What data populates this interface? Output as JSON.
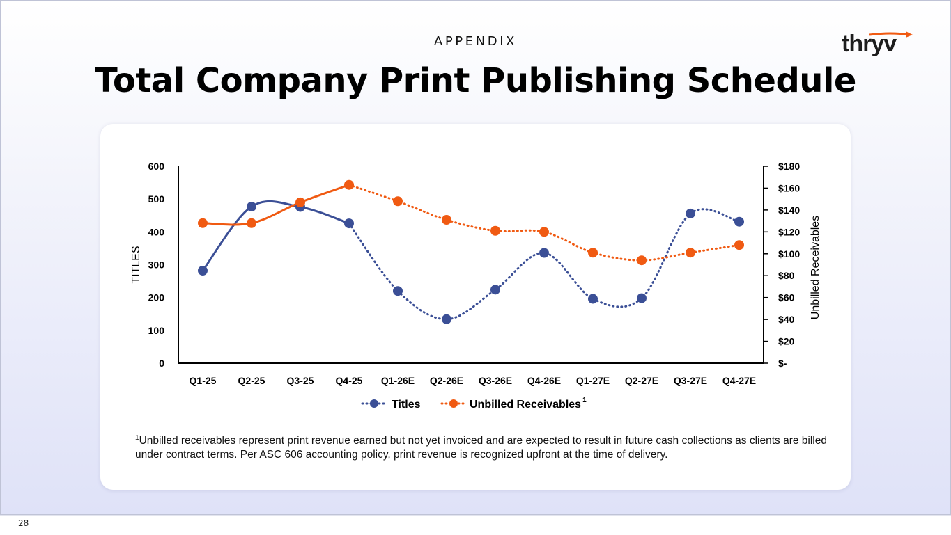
{
  "page": {
    "kicker": "APPENDIX",
    "title": "Total Company Print Publishing Schedule",
    "page_number": "28",
    "logo_text": "thryv"
  },
  "footnote": {
    "marker": "1",
    "text": "Unbilled receivables represent print revenue earned but not yet invoiced and are expected to result in future cash collections as clients are billed under contract terms. Per ASC 606 accounting policy, print revenue is recognized upfront at the time of delivery."
  },
  "colors": {
    "titles": "#3b4f96",
    "receivables": "#f05a12",
    "brand_accent": "#f05a12"
  },
  "chart_data": {
    "type": "line",
    "categories": [
      "Q1-25",
      "Q2-25",
      "Q3-25",
      "Q4-25",
      "Q1-26E",
      "Q2-26E",
      "Q3-26E",
      "Q4-26E",
      "Q1-27E",
      "Q2-27E",
      "Q3-27E",
      "Q4-27E"
    ],
    "ylabel_left": "TITLES",
    "ylabel_right": "Unbilled Receivables",
    "ylim_left": [
      0,
      600
    ],
    "ylim_right": [
      0,
      180
    ],
    "yticks_left": [
      "0",
      "100",
      "200",
      "300",
      "400",
      "500",
      "600"
    ],
    "yticks_right": [
      "$-",
      "$20",
      "$40",
      "$60",
      "$80",
      "$100",
      "$120",
      "$140",
      "$160",
      "$180"
    ],
    "actual_through_index": 3,
    "legend_position": "bottom",
    "grid": false,
    "series": [
      {
        "name": "Titles",
        "axis": "left",
        "values": [
          282,
          477,
          476,
          426,
          220,
          134,
          224,
          336,
          196,
          198,
          456,
          431
        ]
      },
      {
        "name": "Unbilled Receivables",
        "name_superscript": "1",
        "axis": "right",
        "values": [
          128,
          128,
          147,
          163,
          148,
          131,
          121,
          120,
          101,
          94,
          101,
          108
        ]
      }
    ]
  }
}
